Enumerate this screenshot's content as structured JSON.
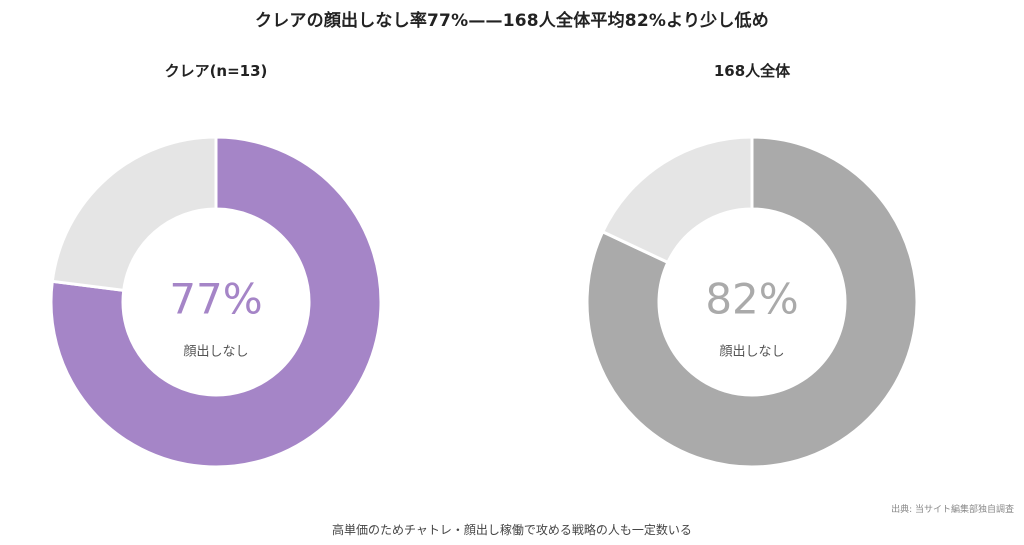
{
  "title": "クレアの顔出しなし率77%——168人全体平均82%より少し低め",
  "chart_data": [
    {
      "type": "pie",
      "title": "クレア(n=13)",
      "center_value": "77%",
      "center_label": "顔出しなし",
      "slices": [
        {
          "label": "顔出しなし",
          "value": 77,
          "color": "#a585c7"
        },
        {
          "label": "",
          "value": 23,
          "color": "#e5e5e5"
        }
      ],
      "accent_color": "#a585c7"
    },
    {
      "type": "pie",
      "title": "168人全体",
      "center_value": "82%",
      "center_label": "顔出しなし",
      "slices": [
        {
          "label": "顔出しなし",
          "value": 82,
          "color": "#aaaaaa"
        },
        {
          "label": "",
          "value": 18,
          "color": "#e5e5e5"
        }
      ],
      "accent_color": "#aaaaaa"
    }
  ],
  "source": "出典: 当サイト編集部独自調査",
  "caption": "高単価のためチャトレ・顔出し稼働で攻める戦略の人も一定数いる"
}
